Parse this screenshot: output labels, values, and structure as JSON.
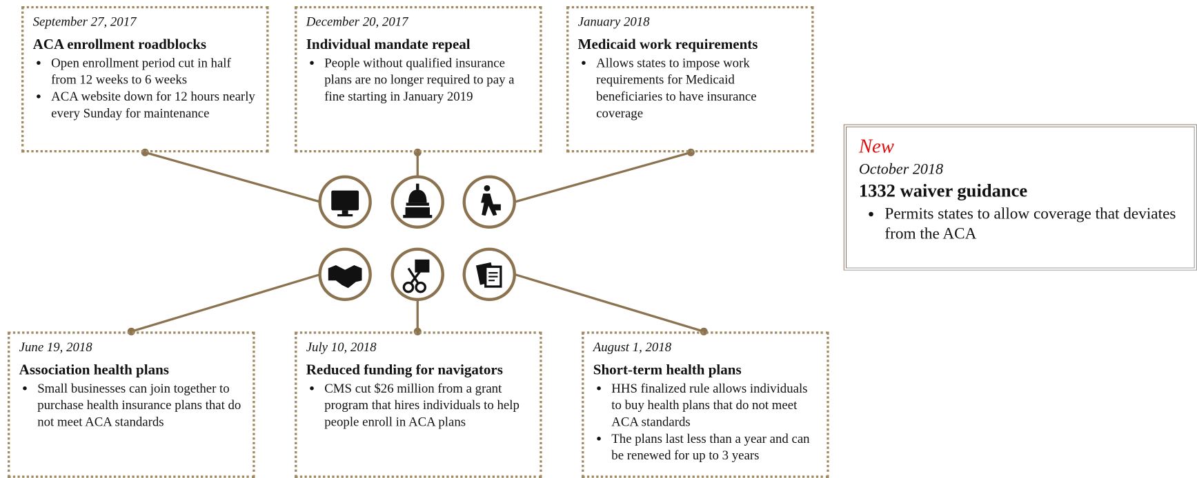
{
  "events": [
    {
      "date": "September 27, 2017",
      "title": "ACA enrollment roadblocks",
      "bullets": [
        "Open enrollment period cut in half from 12 weeks to 6 weeks",
        "ACA website down for 12 hours nearly every Sunday for maintenance"
      ]
    },
    {
      "date": "December 20, 2017",
      "title": "Individual mandate repeal",
      "bullets": [
        "People without qualified insurance plans are no longer required to pay a fine starting in January 2019"
      ]
    },
    {
      "date": "January 2018",
      "title": "Medicaid work requirements",
      "bullets": [
        "Allows states to impose work requirements for Medicaid beneficiaries to have insurance coverage"
      ]
    },
    {
      "date": "June 19, 2018",
      "title": "Association health plans",
      "bullets": [
        "Small businesses can join together to purchase health insurance plans that do not meet ACA standards"
      ]
    },
    {
      "date": "July 10, 2018",
      "title": "Reduced funding for navigators",
      "bullets": [
        "CMS cut $26 million from a  grant program that hires individuals to help people enroll in ACA plans"
      ]
    },
    {
      "date": "August 1, 2018",
      "title": "Short-term health plans",
      "bullets": [
        "HHS finalized rule allows individuals to buy health plans that do not meet ACA standards",
        "The plans last less than a year and can be renewed for up to 3 years"
      ]
    }
  ],
  "new_item": {
    "tag": "New",
    "date": "October 2018",
    "title": "1332 waiver guidance",
    "bullets": [
      "Permits states to allow coverage that deviates from the ACA"
    ]
  }
}
